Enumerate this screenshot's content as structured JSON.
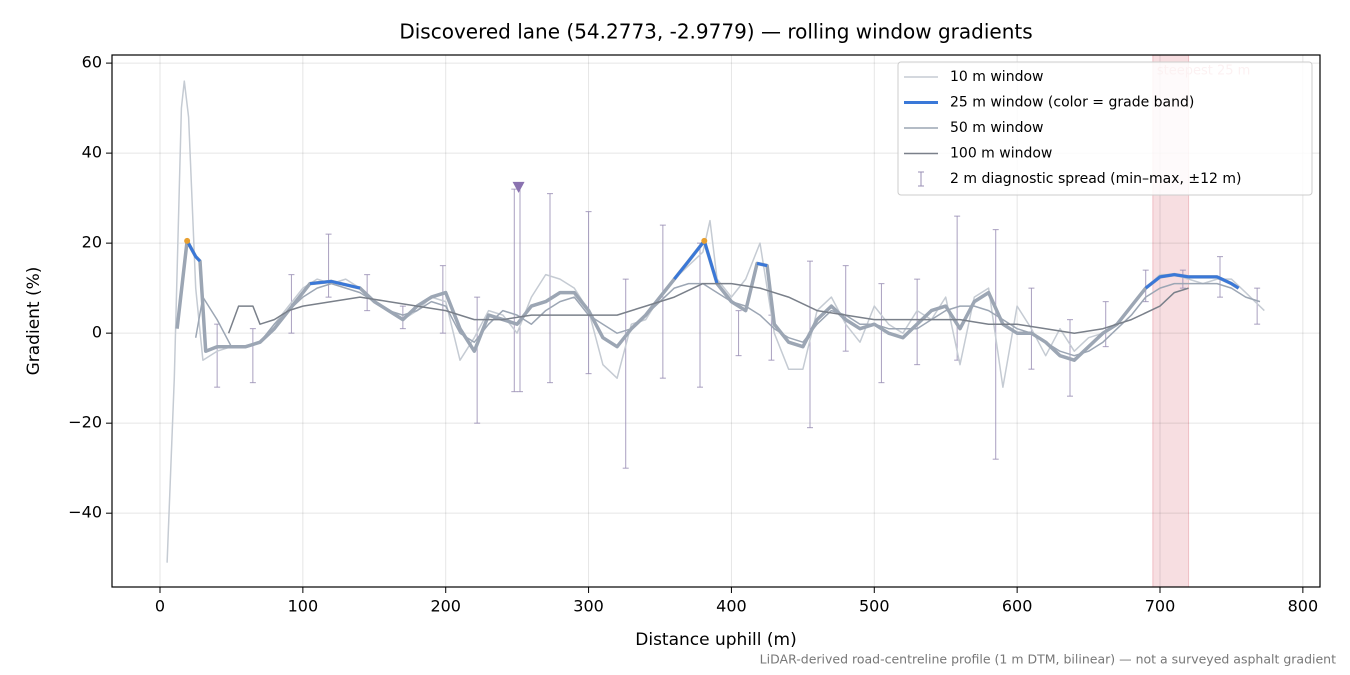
{
  "chart_data": {
    "type": "line",
    "title": "Discovered lane (54.2773, -2.9779) — rolling window gradients",
    "xlabel": "Distance uphill (m)",
    "ylabel": "Gradient (%)",
    "footnote": "LiDAR-derived road-centreline profile (1 m DTM, bilinear) — not a surveyed asphalt gradient",
    "xlim": [
      -33.6,
      812
    ],
    "ylim": [
      -56.4,
      61.8
    ],
    "xticks": [
      0,
      100,
      200,
      300,
      400,
      500,
      600,
      700,
      800
    ],
    "yticks": [
      {
        "value": -40,
        "label": "−40"
      },
      {
        "value": -20,
        "label": "−20"
      },
      0,
      20,
      40,
      60
    ],
    "grid": true,
    "legend": "upper right",
    "series": [
      {
        "name": "10 m window",
        "color": "#c5cbd3",
        "width": 1.5,
        "x": [
          5,
          10,
          15,
          17,
          20,
          25,
          30,
          40,
          50,
          60,
          70,
          80,
          90,
          100,
          110,
          120,
          130,
          140,
          150,
          160,
          170,
          180,
          190,
          200,
          210,
          220,
          230,
          240,
          250,
          260,
          270,
          280,
          290,
          300,
          310,
          320,
          330,
          340,
          350,
          360,
          370,
          380,
          385,
          390,
          400,
          410,
          420,
          430,
          440,
          450,
          460,
          470,
          480,
          490,
          500,
          510,
          520,
          530,
          540,
          550,
          560,
          570,
          580,
          590,
          600,
          610,
          620,
          630,
          640,
          650,
          660,
          670,
          680,
          690,
          700,
          710,
          720,
          730,
          740,
          750,
          760,
          773
        ],
        "values": [
          -51,
          -10,
          50,
          56,
          48,
          10,
          -6,
          -4,
          -3,
          -3,
          -2,
          2,
          6,
          10,
          12,
          11,
          12,
          10,
          7,
          5,
          3,
          5,
          8,
          7,
          -6,
          -1,
          5,
          4,
          0,
          8,
          13,
          12,
          10,
          5,
          -7,
          -10,
          2,
          3,
          8,
          12,
          15,
          18,
          25,
          12,
          8,
          12,
          20,
          0,
          -8,
          -8,
          5,
          8,
          2,
          -2,
          6,
          2,
          0,
          5,
          3,
          8,
          -7,
          8,
          10,
          -12,
          6,
          1,
          -5,
          1,
          -4,
          -1,
          0,
          2,
          6,
          10,
          13,
          13,
          12,
          11,
          12,
          12,
          9,
          5
        ]
      },
      {
        "name": "25 m window (color = grade band)",
        "color": "#9ca6b4",
        "band_color": "#3a78d8",
        "band_min": 10,
        "width": 3.5,
        "x": [
          12,
          19,
          25,
          28,
          32,
          40,
          50,
          60,
          70,
          80,
          90,
          100,
          105,
          120,
          140,
          150,
          160,
          170,
          180,
          190,
          200,
          210,
          220,
          230,
          240,
          250,
          260,
          270,
          280,
          290,
          300,
          310,
          320,
          330,
          340,
          350,
          360,
          370,
          381,
          390,
          400,
          410,
          418,
          425,
          430,
          440,
          450,
          460,
          470,
          480,
          490,
          500,
          510,
          520,
          530,
          540,
          550,
          560,
          570,
          580,
          590,
          600,
          610,
          620,
          630,
          640,
          650,
          660,
          670,
          680,
          690,
          700,
          710,
          720,
          730,
          740,
          750,
          755
        ],
        "values": [
          1,
          20.5,
          17,
          16,
          -4,
          -3,
          -3,
          -3,
          -2,
          1,
          5,
          9,
          11,
          11.5,
          10,
          7,
          5,
          3,
          6,
          8,
          9,
          1,
          -4,
          4,
          3,
          2,
          6,
          7,
          9,
          9,
          5,
          -1,
          -3,
          1,
          4,
          8,
          12,
          16,
          20.5,
          11,
          7,
          5,
          15.5,
          15,
          2,
          -2,
          -3,
          3,
          6,
          3,
          1,
          2,
          0,
          -1,
          2,
          5,
          6,
          1,
          7,
          9,
          2,
          0,
          0,
          -2,
          -5,
          -6,
          -3,
          0,
          2,
          6,
          10,
          12.5,
          13,
          12.5,
          12.5,
          12.5,
          11,
          10
        ]
      },
      {
        "name": "50 m window",
        "color": "#9ca6b4",
        "width": 1.5,
        "x": [
          25,
          30,
          40,
          50,
          60,
          70,
          80,
          90,
          100,
          110,
          120,
          130,
          140,
          150,
          160,
          170,
          180,
          190,
          200,
          210,
          220,
          230,
          240,
          250,
          260,
          270,
          280,
          290,
          300,
          310,
          320,
          330,
          340,
          350,
          360,
          370,
          380,
          390,
          400,
          410,
          420,
          430,
          440,
          450,
          460,
          470,
          480,
          490,
          500,
          510,
          520,
          530,
          540,
          550,
          560,
          570,
          580,
          590,
          600,
          610,
          620,
          630,
          640,
          650,
          660,
          670,
          680,
          690,
          700,
          710,
          720,
          730,
          740,
          750,
          760,
          770
        ],
        "values": [
          -1,
          8,
          3,
          -3,
          -3,
          -2,
          2,
          5,
          8,
          10,
          11,
          10,
          9,
          7,
          5,
          4,
          5,
          7,
          6,
          0,
          -2,
          2,
          5,
          4,
          2,
          5,
          7,
          8,
          4,
          2,
          0,
          1,
          4,
          7,
          10,
          11,
          11,
          9,
          7,
          6,
          4,
          1,
          -1,
          -2,
          2,
          5,
          4,
          2,
          2,
          1,
          1,
          1,
          3,
          5,
          6,
          6,
          5,
          3,
          1,
          0,
          -2,
          -4,
          -5,
          -4,
          -2,
          1,
          4,
          8,
          10,
          11,
          11,
          11,
          11,
          10,
          8,
          7
        ]
      },
      {
        "name": "100 m window",
        "color": "#7a808a",
        "width": 1.5,
        "x": [
          48,
          55,
          65,
          70,
          80,
          90,
          100,
          120,
          140,
          160,
          180,
          200,
          220,
          240,
          260,
          280,
          300,
          320,
          340,
          360,
          380,
          400,
          420,
          440,
          460,
          480,
          500,
          520,
          540,
          560,
          580,
          600,
          620,
          640,
          660,
          680,
          700,
          710,
          720
        ],
        "values": [
          0,
          6,
          6,
          2,
          3,
          5,
          6,
          7,
          8,
          7,
          6,
          5,
          3,
          3,
          4,
          4,
          4,
          4,
          6,
          8,
          11,
          11,
          10,
          8,
          5,
          4,
          3,
          3,
          3,
          3,
          2,
          2,
          1,
          0,
          1,
          3,
          6,
          9,
          10
        ]
      }
    ],
    "errorbars": {
      "name": "2 m diagnostic spread (min–max, ±12 m)",
      "color": "#9a8fb5",
      "x": [
        40,
        65,
        92,
        118,
        145,
        170,
        198,
        222,
        248,
        252,
        273,
        300,
        326,
        352,
        378,
        405,
        428,
        455,
        480,
        505,
        530,
        558,
        585,
        610,
        637,
        662,
        690,
        716,
        742,
        768
      ],
      "low": [
        -12,
        -11,
        0,
        8,
        5,
        1,
        0,
        -20,
        -13,
        -13,
        -11,
        -9,
        -30,
        -10,
        -12,
        -5,
        -6,
        -21,
        -4,
        -11,
        -7,
        -6,
        -28,
        -8,
        -14,
        -3,
        7,
        10,
        8,
        2
      ],
      "high": [
        2,
        1,
        13,
        22,
        13,
        6,
        15,
        8,
        32,
        33,
        31,
        27,
        12,
        24,
        20,
        5,
        4,
        16,
        15,
        11,
        12,
        26,
        23,
        10,
        3,
        7,
        14,
        14,
        17,
        10
      ]
    },
    "peaks": {
      "color": "#e8a030",
      "x": [
        19,
        381
      ],
      "values": [
        20.5,
        20.5
      ]
    },
    "marker": {
      "color": "#8a72b0",
      "x": 251,
      "value": 32.5
    },
    "highlight": {
      "label": "steepest 25 m",
      "color": "#e8a0a8",
      "x": [
        695,
        720
      ]
    }
  }
}
